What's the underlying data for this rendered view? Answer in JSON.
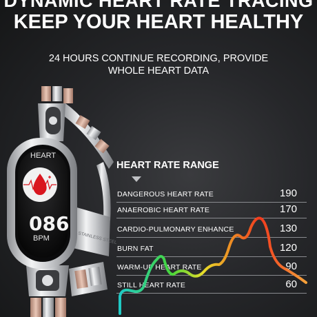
{
  "header": {
    "title_line1": "DYNAMIC HEART RATE TRACING",
    "title_line2": "KEEP YOUR HEART HEALTHY",
    "subtitle_line1": "24 HOURS CONTINUE RECORDING, PROVIDE",
    "subtitle_line2": "WHOLE HEART DATA"
  },
  "watch": {
    "screen_label": "HEART",
    "bpm_value": "086",
    "bpm_unit": "BPM",
    "band_engraving": "STAINLESS STEEL"
  },
  "range": {
    "title": "HEART RATE RANGE",
    "rows": [
      {
        "label": "DANGEROUS HEART RATE",
        "value": "190"
      },
      {
        "label": "ANAEROBIC HEART RATE",
        "value": "170"
      },
      {
        "label": "CARDIO-PULMONARY ENHANCE",
        "value": "130"
      },
      {
        "label": "BURN FAT",
        "value": "120"
      },
      {
        "label": "WARM-UP HEART RATE",
        "value": "90"
      },
      {
        "label": "STILL HEART RATE",
        "value": "60"
      }
    ]
  },
  "colors": {
    "curve_start": "#1fc9c8",
    "curve_green": "#47d63a",
    "curve_yellow": "#e8dd2a",
    "curve_red": "#f23a1e",
    "curve_end": "#f5a33a"
  }
}
